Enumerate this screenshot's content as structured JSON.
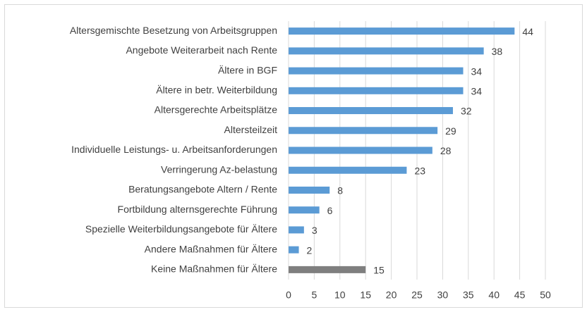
{
  "chart_data": {
    "type": "bar",
    "orientation": "horizontal",
    "categories": [
      "Altersgemischte Besetzung von Arbeitsgruppen",
      "Angebote Weiterarbeit nach Rente",
      "Ältere in BGF",
      "Ältere in betr. Weiterbildung",
      "Altersgerechte Arbeitsplätze",
      "Altersteilzeit",
      "Individuelle Leistungs- u. Arbeitsanforderungen",
      "Verringerung Az-belastung",
      "Beratungsangebote Altern / Rente",
      "Fortbildung alternsgerechte Führung",
      "Spezielle Weiterbildungsangebote für Ältere",
      "Andere Maßnahmen für Ältere",
      "Keine Maßnahmen für Ältere"
    ],
    "values": [
      44,
      38,
      34,
      34,
      32,
      29,
      28,
      23,
      8,
      6,
      3,
      2,
      15
    ],
    "colors": [
      "#5b9bd5",
      "#5b9bd5",
      "#5b9bd5",
      "#5b9bd5",
      "#5b9bd5",
      "#5b9bd5",
      "#5b9bd5",
      "#5b9bd5",
      "#5b9bd5",
      "#5b9bd5",
      "#5b9bd5",
      "#5b9bd5",
      "#7f7f7f"
    ],
    "xlim": [
      0,
      50
    ],
    "xticks": [
      0,
      5,
      10,
      15,
      20,
      25,
      30,
      35,
      40,
      45,
      50
    ],
    "grid": true
  }
}
